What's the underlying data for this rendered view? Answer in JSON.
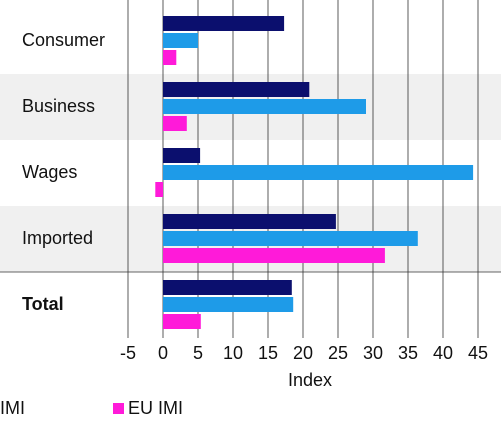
{
  "chart_data": {
    "type": "bar",
    "orientation": "horizontal",
    "categories": [
      "Consumer",
      "Business",
      "Wages",
      "Imported",
      "Total"
    ],
    "bold_categories": [
      "Total"
    ],
    "series": [
      {
        "color": "#0b0f6e",
        "values": [
          17.3,
          20.9,
          5.3,
          24.7,
          18.4
        ]
      },
      {
        "name": "IMI",
        "color": "#1e9be8",
        "values": [
          5,
          29,
          44.3,
          36.4,
          18.6
        ]
      },
      {
        "name": "EU IMI",
        "color": "#ff1ad9",
        "values": [
          1.9,
          3.4,
          -1.1,
          31.7,
          5.4
        ]
      }
    ],
    "xlabel": "Index",
    "xlim": [
      -5,
      47
    ],
    "xticks": [
      -5,
      0,
      5,
      10,
      15,
      20,
      25,
      30,
      35,
      40,
      45
    ],
    "grid": true,
    "band_color": "#f0f0f0"
  }
}
